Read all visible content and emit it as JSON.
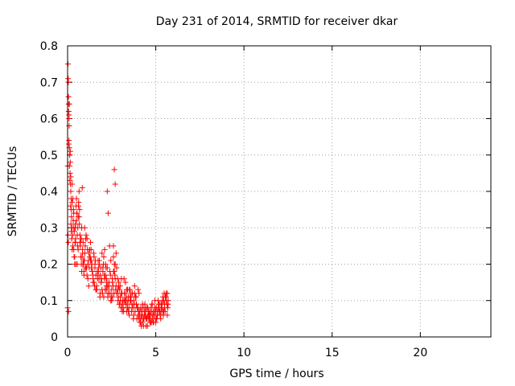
{
  "chart_data": {
    "type": "scatter",
    "title": "Day 231 of 2014, SRMTID for receiver dkar",
    "xlabel": "GPS time / hours",
    "ylabel": "SRMTID / TECUs",
    "xlim": [
      0,
      24
    ],
    "ylim": [
      0,
      0.8
    ],
    "xticks": [
      0,
      5,
      10,
      15,
      20
    ],
    "yticks": [
      0,
      0.1,
      0.2,
      0.3,
      0.4,
      0.5,
      0.6,
      0.7,
      0.8
    ],
    "xtick_labels": [
      "0",
      "5",
      "10",
      "15",
      "20"
    ],
    "ytick_labels": [
      "0",
      "0.1",
      "0.2",
      "0.3",
      "0.4",
      "0.5",
      "0.6",
      "0.7",
      "0.8"
    ],
    "grid": true,
    "marker": "+",
    "series": [
      {
        "name": "SRMTID",
        "color": "#ff0000",
        "x": [
          0.02,
          0.03,
          0.05,
          0.06,
          0.08,
          0.1,
          0.12,
          0.14,
          0.16,
          0.18,
          0.2,
          0.22,
          0.25,
          0.28,
          0.3,
          0.32,
          0.35,
          0.38,
          0.4,
          0.42,
          0.45,
          0.48,
          0.5,
          0.52,
          0.55,
          0.58,
          0.6,
          0.62,
          0.65,
          0.68,
          0.7,
          0.72,
          0.75,
          0.78,
          0.8,
          0.82,
          0.85,
          0.88,
          0.9,
          0.92,
          0.95,
          0.98,
          1.0,
          1.05,
          1.1,
          1.15,
          1.2,
          1.25,
          1.3,
          1.35,
          1.4,
          1.45,
          1.5,
          1.55,
          1.6,
          1.65,
          1.7,
          1.75,
          1.8,
          1.85,
          1.9,
          1.95,
          2.0,
          2.05,
          2.1,
          2.15,
          2.2,
          2.25,
          2.3,
          2.35,
          2.4,
          2.45,
          2.5,
          2.55,
          2.6,
          2.65,
          2.7,
          2.75,
          2.8,
          2.85,
          2.9,
          2.95,
          3.0,
          3.05,
          3.1,
          3.15,
          3.2,
          3.25,
          3.3,
          3.35,
          3.4,
          3.45,
          3.5,
          3.55,
          3.6,
          3.65,
          3.7,
          3.75,
          3.8,
          3.85,
          3.9,
          3.95,
          4.0,
          4.05,
          4.1,
          4.15,
          4.2,
          4.25,
          4.3,
          4.35,
          4.4,
          4.45,
          4.5,
          4.55,
          4.6,
          4.65,
          4.7,
          4.75,
          4.8,
          4.85,
          4.9,
          4.95,
          5.0,
          5.05,
          5.1,
          5.15,
          5.2,
          5.25,
          5.3,
          5.35,
          5.4,
          5.45,
          5.5,
          5.55,
          5.6,
          5.65,
          5.7,
          0.0,
          0.04,
          0.07,
          0.1,
          0.15,
          0.2,
          0.25,
          0.3,
          0.35,
          0.4,
          0.45,
          0.5,
          0.6,
          0.7,
          0.8,
          0.9,
          1.0,
          1.1,
          1.2,
          1.3,
          1.4,
          1.5,
          1.6,
          1.7,
          1.8,
          1.9,
          2.0,
          2.1,
          2.2,
          2.3,
          2.4,
          2.5,
          2.6,
          2.7,
          2.8,
          2.9,
          3.0,
          3.1,
          3.2,
          3.3,
          3.4,
          3.5,
          3.6,
          3.7,
          3.8,
          3.9,
          4.0,
          4.1,
          4.2,
          4.3,
          4.4,
          4.5,
          4.6,
          4.7,
          4.8,
          4.9,
          5.0,
          5.1,
          5.2,
          5.3,
          5.4,
          5.5,
          5.6,
          5.7,
          0.05,
          0.08,
          0.12,
          0.18,
          0.25,
          0.35,
          0.45,
          0.55,
          0.65,
          0.75,
          0.85,
          0.95,
          1.05,
          1.15,
          1.25,
          1.35,
          1.45,
          1.55,
          1.65,
          1.75,
          1.85,
          1.95,
          2.05,
          2.15,
          2.25,
          2.35,
          2.45,
          2.55,
          2.65,
          2.75,
          2.85,
          2.95,
          3.05,
          3.15,
          3.25,
          3.35,
          3.45,
          3.55,
          3.65,
          3.75,
          3.85,
          3.95,
          4.05,
          4.15,
          4.25,
          4.35,
          4.45,
          4.55,
          4.65,
          4.75,
          4.85,
          4.95,
          5.05,
          5.15,
          5.25,
          5.35,
          5.45,
          5.55,
          5.65,
          2.2,
          2.25,
          2.3,
          2.6,
          2.65,
          2.7,
          0.01,
          0.02,
          0.04,
          0.06,
          0.08,
          0.09,
          0.11,
          0.13,
          0.15,
          0.17,
          0.19,
          0.21,
          0.23,
          0.26,
          0.33,
          0.37,
          0.43,
          0.47,
          0.53,
          0.57,
          0.63,
          0.67,
          0.73,
          0.77,
          0.83,
          0.87,
          0.93,
          0.97,
          1.03,
          1.08,
          1.13,
          1.18,
          1.23,
          1.28,
          1.33,
          1.38,
          1.43,
          1.48,
          1.53,
          1.58,
          1.63,
          1.68,
          1.73,
          1.78,
          1.83,
          1.88,
          1.93,
          1.98,
          2.03,
          2.08,
          2.13,
          2.18,
          2.23,
          2.28,
          2.33,
          2.38,
          2.43,
          2.48,
          2.53,
          2.58,
          2.63,
          2.68,
          2.73,
          2.78,
          2.83,
          2.88,
          2.93,
          2.98,
          3.03,
          3.08,
          3.13,
          3.18,
          3.23,
          3.28,
          3.33,
          3.38,
          3.43,
          3.48,
          3.53,
          3.58,
          3.63,
          3.68,
          3.73,
          3.78,
          3.83,
          3.88,
          3.93,
          3.98,
          4.03,
          4.08,
          4.13,
          4.18,
          4.23,
          4.28,
          4.33,
          4.38,
          4.43,
          4.48,
          4.53,
          4.58,
          4.63,
          4.68,
          4.73,
          4.78,
          4.83,
          4.88,
          4.93,
          4.98,
          5.03,
          5.08,
          5.13,
          5.18,
          5.23,
          5.28,
          5.33,
          5.38,
          5.43,
          5.48,
          5.53,
          5.58,
          5.63,
          5.68
        ],
        "y": [
          0.75,
          0.71,
          0.66,
          0.62,
          0.6,
          0.52,
          0.5,
          0.45,
          0.42,
          0.4,
          0.38,
          0.33,
          0.3,
          0.28,
          0.25,
          0.32,
          0.34,
          0.29,
          0.22,
          0.26,
          0.31,
          0.36,
          0.38,
          0.34,
          0.28,
          0.3,
          0.33,
          0.36,
          0.4,
          0.35,
          0.28,
          0.25,
          0.22,
          0.2,
          0.18,
          0.22,
          0.24,
          0.26,
          0.2,
          0.18,
          0.21,
          0.23,
          0.25,
          0.19,
          0.17,
          0.2,
          0.23,
          0.22,
          0.26,
          0.21,
          0.18,
          0.16,
          0.15,
          0.19,
          0.17,
          0.14,
          0.16,
          0.18,
          0.2,
          0.17,
          0.15,
          0.13,
          0.18,
          0.22,
          0.24,
          0.2,
          0.16,
          0.14,
          0.12,
          0.15,
          0.12,
          0.1,
          0.13,
          0.15,
          0.18,
          0.2,
          0.16,
          0.14,
          0.12,
          0.1,
          0.15,
          0.13,
          0.11,
          0.12,
          0.09,
          0.08,
          0.1,
          0.12,
          0.09,
          0.07,
          0.08,
          0.11,
          0.13,
          0.1,
          0.12,
          0.09,
          0.08,
          0.1,
          0.14,
          0.11,
          0.09,
          0.08,
          0.06,
          0.05,
          0.07,
          0.08,
          0.06,
          0.04,
          0.05,
          0.07,
          0.06,
          0.05,
          0.08,
          0.06,
          0.05,
          0.07,
          0.06,
          0.04,
          0.05,
          0.07,
          0.06,
          0.08,
          0.07,
          0.05,
          0.06,
          0.08,
          0.07,
          0.06,
          0.09,
          0.08,
          0.07,
          0.1,
          0.09,
          0.11,
          0.1,
          0.12,
          0.09,
          0.08,
          0.26,
          0.53,
          0.64,
          0.48,
          0.35,
          0.42,
          0.38,
          0.24,
          0.2,
          0.27,
          0.32,
          0.24,
          0.26,
          0.3,
          0.21,
          0.19,
          0.27,
          0.14,
          0.21,
          0.18,
          0.22,
          0.13,
          0.17,
          0.21,
          0.15,
          0.19,
          0.16,
          0.14,
          0.12,
          0.18,
          0.1,
          0.22,
          0.2,
          0.12,
          0.14,
          0.1,
          0.07,
          0.16,
          0.1,
          0.13,
          0.06,
          0.11,
          0.08,
          0.12,
          0.09,
          0.13,
          0.04,
          0.07,
          0.03,
          0.08,
          0.05,
          0.06,
          0.04,
          0.09,
          0.06,
          0.04,
          0.07,
          0.09,
          0.07,
          0.11,
          0.08,
          0.12,
          0.1,
          0.07,
          0.61,
          0.5,
          0.44,
          0.37,
          0.3,
          0.26,
          0.2,
          0.33,
          0.27,
          0.23,
          0.21,
          0.28,
          0.16,
          0.24,
          0.19,
          0.15,
          0.2,
          0.13,
          0.19,
          0.12,
          0.23,
          0.11,
          0.17,
          0.19,
          0.14,
          0.21,
          0.11,
          0.18,
          0.23,
          0.13,
          0.09,
          0.16,
          0.08,
          0.1,
          0.13,
          0.07,
          0.11,
          0.09,
          0.06,
          0.11,
          0.08,
          0.12,
          0.05,
          0.09,
          0.06,
          0.03,
          0.08,
          0.05,
          0.07,
          0.04,
          0.1,
          0.05,
          0.08,
          0.06,
          0.09,
          0.07,
          0.11,
          0.06,
          0.13,
          0.4,
          0.34,
          0.25,
          0.46,
          0.42,
          0.47,
          0.28,
          0.7,
          0.64,
          0.54,
          0.58,
          0.47,
          0.43,
          0.51,
          0.36,
          0.31,
          0.29,
          0.27,
          0.24,
          0.35,
          0.22,
          0.3,
          0.2,
          0.34,
          0.25,
          0.37,
          0.31,
          0.26,
          0.27,
          0.41,
          0.2,
          0.17,
          0.3,
          0.27,
          0.19,
          0.24,
          0.21,
          0.19,
          0.22,
          0.24,
          0.2,
          0.17,
          0.23,
          0.14,
          0.21,
          0.13,
          0.18,
          0.21,
          0.16,
          0.11,
          0.19,
          0.16,
          0.12,
          0.2,
          0.17,
          0.13,
          0.19,
          0.15,
          0.11,
          0.14,
          0.25,
          0.17,
          0.11,
          0.16,
          0.14,
          0.12,
          0.17,
          0.13,
          0.19,
          0.16,
          0.11,
          0.09,
          0.14,
          0.08,
          0.12,
          0.1,
          0.07,
          0.12,
          0.15,
          0.11,
          0.09,
          0.1,
          0.08,
          0.13,
          0.1,
          0.07,
          0.12,
          0.05,
          0.09,
          0.07,
          0.11,
          0.05,
          0.08,
          0.07,
          0.06,
          0.04,
          0.03,
          0.06,
          0.08,
          0.05,
          0.09,
          0.07,
          0.05,
          0.03,
          0.07,
          0.06,
          0.04,
          0.08,
          0.09,
          0.06,
          0.04,
          0.07,
          0.05,
          0.08,
          0.06,
          0.1,
          0.09,
          0.07,
          0.05,
          0.08,
          0.1,
          0.06,
          0.12,
          0.07,
          0.11,
          0.09,
          0.08
        ]
      }
    ]
  }
}
